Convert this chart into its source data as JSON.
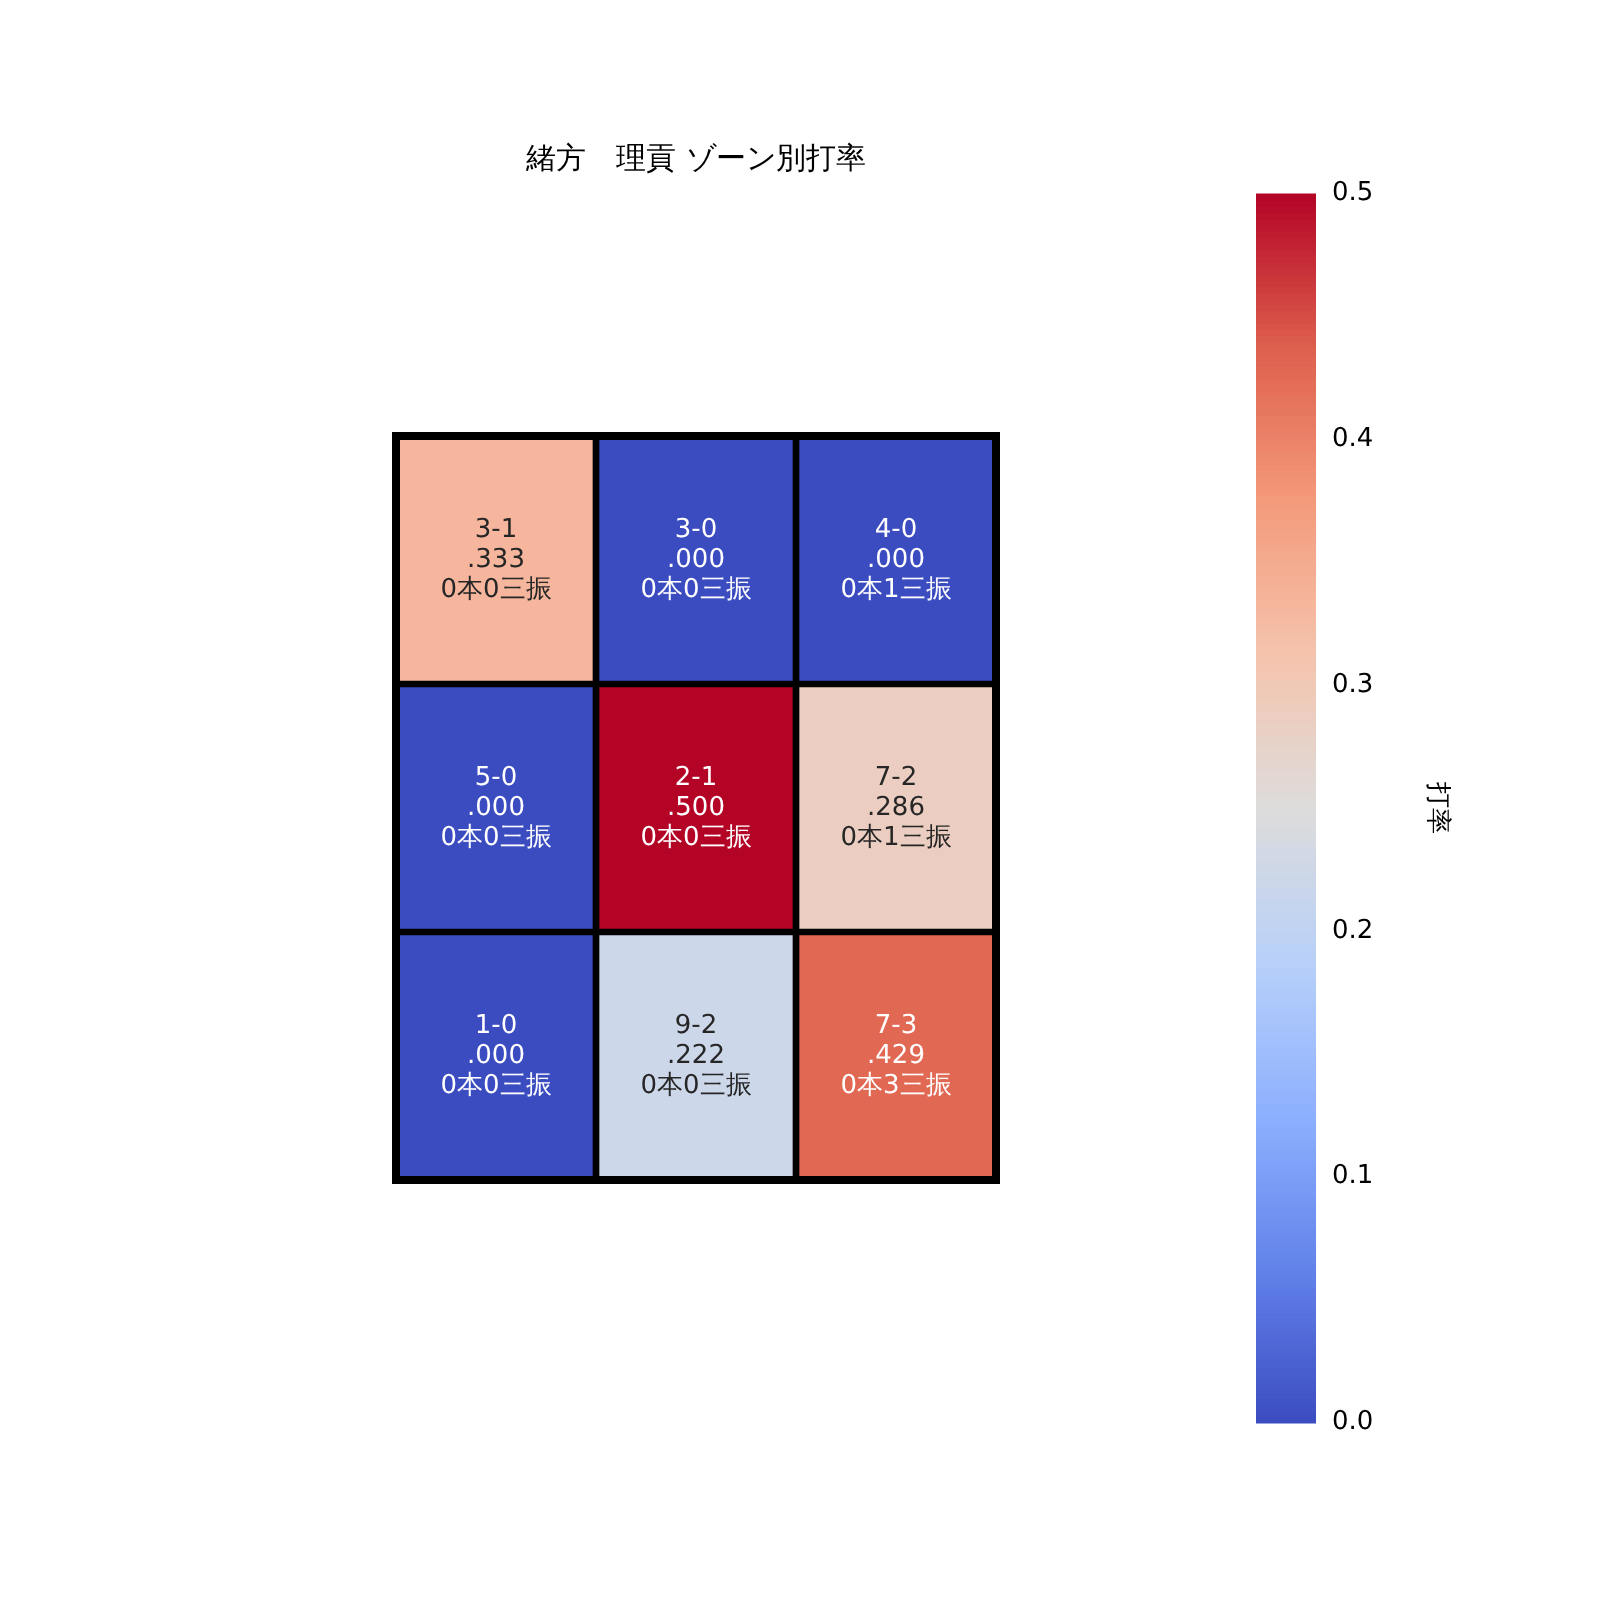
{
  "chart_data": {
    "type": "heatmap",
    "title": "緒方　理貢 ゾーン別打率",
    "categories": [
      null,
      null,
      null
    ],
    "y_categories": [
      null,
      null,
      null
    ],
    "cells": [
      [
        0.333,
        0.0,
        0.0
      ],
      [
        0.0,
        0.5,
        0.286
      ],
      [
        0.0,
        0.222,
        0.429
      ]
    ],
    "cell_labels": [
      [
        "3-1\n.333\n0本0三振",
        "3-0\n.000\n0本0三振",
        "4-0\n.000\n0本1三振"
      ],
      [
        "5-0\n.000\n0本0三振",
        "2-1\n.500\n0本0三振",
        "7-2\n.286\n0本1三振"
      ],
      [
        "1-0\n.000\n0本0三振",
        "9-2\n.222\n0本0三振",
        "7-3\n.429\n0本3三振"
      ]
    ],
    "clim": [
      0,
      0.5
    ],
    "cticks": [
      {
        "value": 0,
        "label": "0.0"
      },
      {
        "value": 0.1,
        "label": "0.1"
      },
      {
        "value": 0.2,
        "label": "0.2"
      },
      {
        "value": 0.3,
        "label": "0.3"
      },
      {
        "value": 0.4,
        "label": "0.4"
      },
      {
        "value": 0.5,
        "label": "0.5"
      }
    ],
    "clabel": "打率"
  }
}
